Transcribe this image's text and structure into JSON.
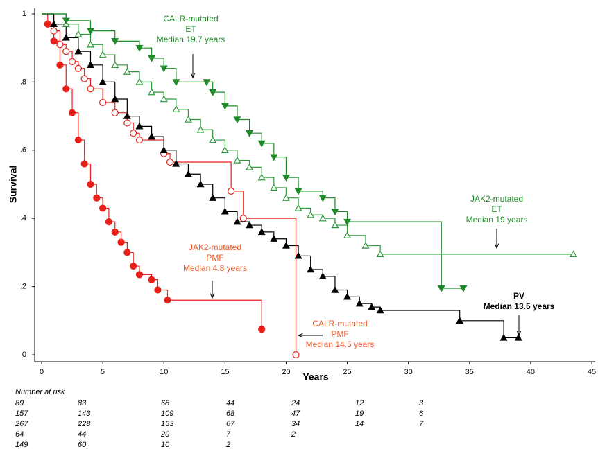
{
  "chart_data": {
    "type": "line",
    "step": true,
    "xlabel": "Years",
    "ylabel": "Survival",
    "xlim": [
      0,
      45
    ],
    "ylim": [
      0,
      1
    ],
    "xticks": [
      0,
      5,
      10,
      15,
      20,
      25,
      30,
      35,
      40,
      45
    ],
    "yticks": [
      0,
      {
        "value": 0.2,
        "label": ".2"
      },
      {
        "value": 0.4,
        "label": ".4"
      },
      {
        "value": 0.6,
        "label": ".6"
      },
      {
        "value": 0.8,
        "label": ".8"
      },
      1
    ],
    "series": [
      {
        "color": "#e8201a",
        "marker": "circle",
        "filled": true,
        "x": [
          0,
          0.5,
          1,
          1.5,
          2,
          2.5,
          3,
          3.5,
          4,
          4.5,
          5,
          5.5,
          6,
          6.5,
          7,
          7.5,
          8,
          9,
          9.5,
          10.3,
          18
        ],
        "y": [
          1,
          0.97,
          0.92,
          0.85,
          0.78,
          0.71,
          0.63,
          0.56,
          0.5,
          0.46,
          0.43,
          0.39,
          0.36,
          0.33,
          0.3,
          0.26,
          0.235,
          0.22,
          0.19,
          0.16,
          0.075
        ]
      },
      {
        "color": "#e8201a",
        "marker": "circle",
        "filled": false,
        "x": [
          0,
          1,
          1.5,
          2,
          2.5,
          3,
          3.5,
          4,
          5,
          6,
          7,
          7.5,
          8,
          10,
          10.5,
          15.5,
          16.5,
          20.8
        ],
        "y": [
          1,
          0.95,
          0.91,
          0.89,
          0.86,
          0.84,
          0.81,
          0.78,
          0.74,
          0.71,
          0.68,
          0.65,
          0.63,
          0.59,
          0.565,
          0.48,
          0.4,
          0
        ]
      },
      {
        "color": "#000000",
        "marker": "triangle-up",
        "filled": true,
        "x": [
          0,
          1,
          2,
          3,
          4,
          5,
          6,
          7,
          8,
          9,
          10,
          11,
          12,
          13,
          14,
          15,
          16,
          17,
          18,
          19,
          20,
          21,
          22,
          23,
          24,
          25,
          26,
          27,
          27.7,
          34.2,
          37.8,
          39
        ],
        "y": [
          1,
          0.97,
          0.93,
          0.89,
          0.85,
          0.8,
          0.75,
          0.7,
          0.67,
          0.64,
          0.6,
          0.56,
          0.53,
          0.5,
          0.46,
          0.42,
          0.39,
          0.38,
          0.36,
          0.34,
          0.32,
          0.29,
          0.25,
          0.23,
          0.19,
          0.17,
          0.15,
          0.14,
          0.13,
          0.1,
          0.05,
          0.05
        ]
      },
      {
        "color": "#2e9a3a",
        "marker": "triangle-up",
        "filled": false,
        "x": [
          0,
          2,
          3,
          4,
          5,
          6,
          7,
          8,
          9,
          10,
          11,
          12,
          13,
          14,
          15,
          16,
          17,
          18,
          19,
          20,
          21,
          22,
          23,
          24,
          25,
          26.5,
          27.7,
          43.5
        ],
        "y": [
          1,
          0.97,
          0.94,
          0.91,
          0.88,
          0.85,
          0.83,
          0.8,
          0.77,
          0.75,
          0.72,
          0.69,
          0.66,
          0.63,
          0.6,
          0.57,
          0.55,
          0.52,
          0.49,
          0.46,
          0.43,
          0.41,
          0.4,
          0.38,
          0.35,
          0.32,
          0.295,
          0.295
        ]
      },
      {
        "color": "#1e8a28",
        "marker": "triangle-down",
        "filled": true,
        "x": [
          0,
          2,
          4,
          6,
          8,
          9,
          10,
          11,
          13.5,
          14,
          15,
          16,
          17,
          18,
          19,
          20,
          21,
          23,
          24,
          25,
          32.7,
          34.5
        ],
        "y": [
          1,
          0.98,
          0.95,
          0.92,
          0.9,
          0.87,
          0.84,
          0.8,
          0.8,
          0.77,
          0.73,
          0.69,
          0.65,
          0.62,
          0.58,
          0.52,
          0.48,
          0.46,
          0.42,
          0.39,
          0.195,
          0.195
        ]
      }
    ],
    "annotations": [
      {
        "lines": [
          "CALR-mutated",
          "ET",
          "Median 19.7 years"
        ],
        "color": "#1e8a28"
      },
      {
        "lines": [
          "JAK2-mutated",
          "ET",
          "Median 19 years"
        ],
        "color": "#1e8a28"
      },
      {
        "lines": [
          "JAK2-mutated",
          "PMF",
          "Median 4.8 years"
        ],
        "color": "#f05a28"
      },
      {
        "lines": [
          "CALR-mutated",
          "PMF",
          "Median 14.5 years"
        ],
        "color": "#f05a28"
      },
      {
        "lines": [
          "PV",
          "Median 13.5 years"
        ],
        "color": "#000000"
      }
    ]
  },
  "risk_table": {
    "title": "Number at risk",
    "rows": [
      [
        89,
        83,
        68,
        44,
        24,
        12,
        3
      ],
      [
        157,
        143,
        109,
        68,
        47,
        19,
        6
      ],
      [
        267,
        228,
        153,
        67,
        34,
        14,
        7
      ],
      [
        64,
        44,
        20,
        7,
        2
      ],
      [
        149,
        60,
        10,
        2
      ]
    ]
  }
}
